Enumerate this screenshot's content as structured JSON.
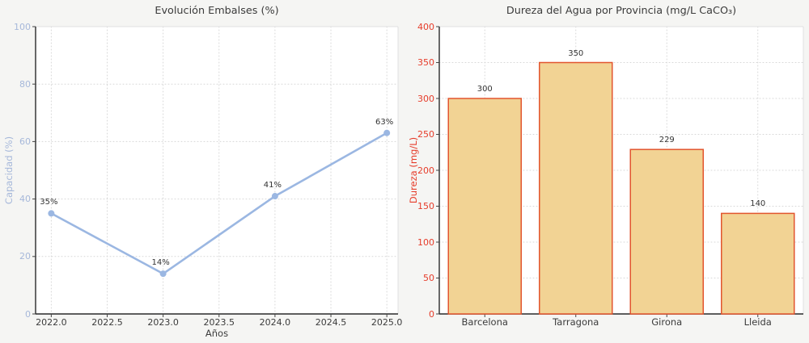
{
  "figure": {
    "background": "#f5f5f3",
    "plot_background": "#ffffff",
    "grid_color": "#d7d7d7",
    "spine_dark": "#2a2a2a",
    "spine_light": "#e0e0e0",
    "tick_mark_color": "#444444",
    "title_color": "#3b3b3b"
  },
  "chart_data": [
    {
      "type": "line",
      "title": "Evolución Embalses (%)",
      "xlabel": "Años",
      "ylabel": "Capacidad (%)",
      "x": [
        2022,
        2023,
        2024,
        2025
      ],
      "values": [
        35,
        14,
        41,
        63
      ],
      "point_labels": [
        "35%",
        "14%",
        "41%",
        "63%"
      ],
      "xticks": [
        "2022.0",
        "2022.5",
        "2023.0",
        "2023.5",
        "2024.0",
        "2024.5",
        "2025.0"
      ],
      "xtick_values": [
        2022,
        2022.5,
        2023,
        2023.5,
        2024,
        2024.5,
        2025
      ],
      "yticks": [
        0,
        20,
        40,
        60,
        80,
        100
      ],
      "ylim": [
        0,
        100
      ],
      "xlim": [
        2021.86,
        2025.1
      ],
      "grid": true,
      "legend": "none",
      "line_color": "#9bb7e2",
      "axis_color": "#a6b8da"
    },
    {
      "type": "bar",
      "title": "Dureza del Agua por Provincia (mg/L CaCO₃)",
      "xlabel": "",
      "ylabel": "Dureza (mg/L)",
      "categories": [
        "Barcelona",
        "Tarragona",
        "Girona",
        "Lleida"
      ],
      "values": [
        300,
        350,
        229,
        140
      ],
      "value_labels": [
        "300",
        "350",
        "229",
        "140"
      ],
      "yticks": [
        0,
        50,
        100,
        150,
        200,
        250,
        300,
        350,
        400
      ],
      "ylim": [
        0,
        400
      ],
      "grid": true,
      "legend": "none",
      "bar_fill": "#f2d394",
      "bar_edge": "#e2552e",
      "axis_color": "#e63c2a"
    }
  ]
}
